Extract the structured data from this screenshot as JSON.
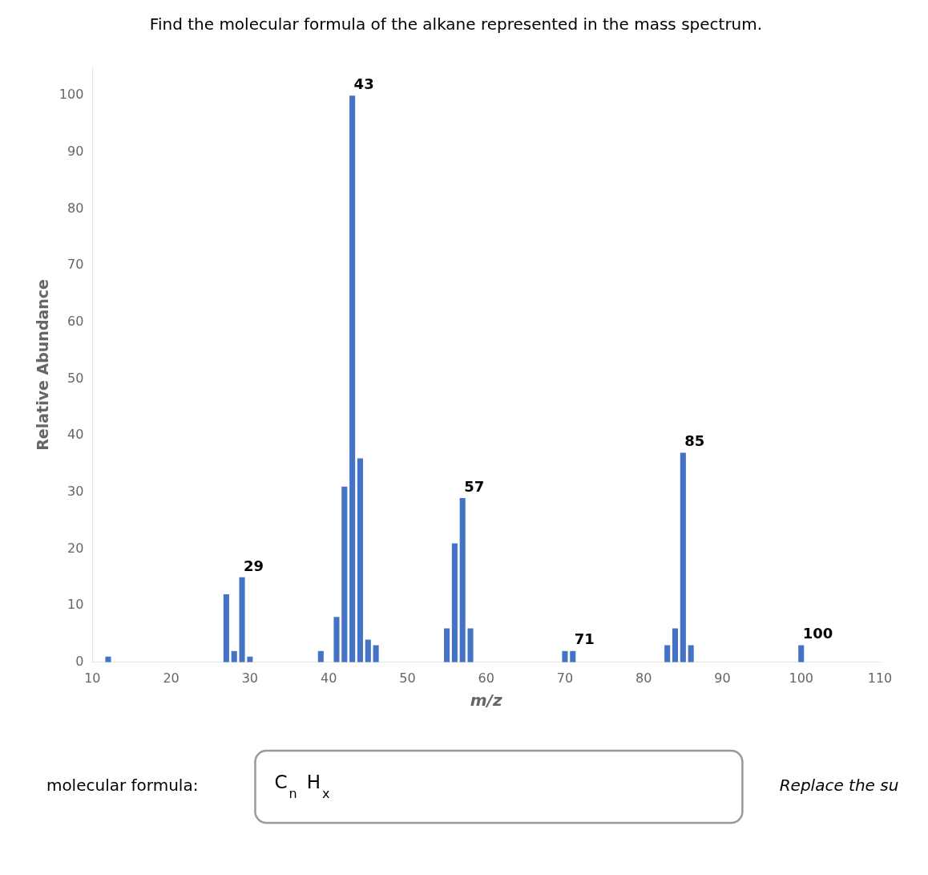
{
  "chart_data": {
    "type": "bar",
    "title": "Find the molecular formula of the alkane represented in the mass spectrum.",
    "x_label": "m/z",
    "y_label": "Relative Abundance",
    "x": [
      12,
      27,
      28,
      29,
      30,
      39,
      41,
      42,
      43,
      44,
      45,
      46,
      55,
      56,
      57,
      58,
      70,
      71,
      83,
      84,
      85,
      86,
      100
    ],
    "values": [
      1,
      12,
      2,
      15,
      1,
      2,
      8,
      31,
      100,
      36,
      4,
      3,
      6,
      21,
      29,
      6,
      2,
      2,
      3,
      6,
      37,
      3,
      3
    ],
    "color": "#4472C4",
    "xlim": [
      10,
      110
    ],
    "ylim": [
      0,
      105
    ],
    "xticks": [
      10,
      20,
      30,
      40,
      50,
      60,
      70,
      80,
      90,
      100,
      110
    ],
    "yticks": [
      0,
      10,
      20,
      30,
      40,
      50,
      60,
      70,
      80,
      90,
      100
    ],
    "grid": false,
    "legend": false,
    "annotations": [
      {
        "text": "29",
        "x": 29,
        "y": 15
      },
      {
        "text": "43",
        "x": 43,
        "y": 100
      },
      {
        "text": "57",
        "x": 57,
        "y": 29
      },
      {
        "text": "71",
        "x": 71,
        "y": 2
      },
      {
        "text": "85",
        "x": 85,
        "y": 37
      },
      {
        "text": "100",
        "x": 100,
        "y": 3
      }
    ],
    "footer": {
      "label": "molecular formula:",
      "formula": [
        {
          "text": "C",
          "sub": "n"
        },
        {
          "text": "H",
          "sub": "x"
        }
      ],
      "hint": "Replace the su",
      "color": "#999999"
    }
  }
}
